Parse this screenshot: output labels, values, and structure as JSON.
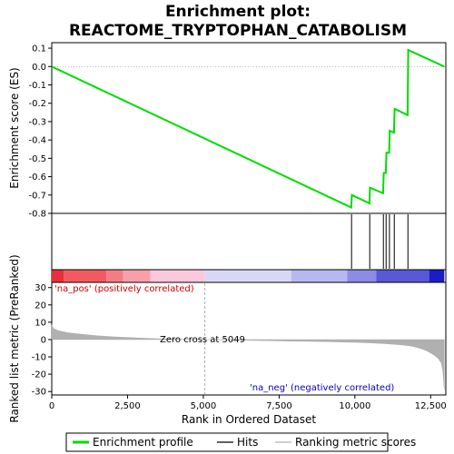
{
  "chart_data": {
    "type": "line",
    "title_line1": "Enrichment plot:",
    "title_line2": "REACTOME_TRYPTOPHAN_CATABOLISM",
    "colors": {
      "enrichment_line": "#00dd00",
      "hits": "#000000",
      "metric_fill": "#b0b0b0",
      "zero_cross": "#b0b0b0",
      "neg_label": "#0000cc",
      "pos_label": "#cc0000"
    },
    "enrichment_panel": {
      "ylabel": "Enrichment score (ES)",
      "ylim": [
        -0.8,
        0.13
      ],
      "yticks": [
        0.1,
        0.0,
        -0.1,
        -0.2,
        -0.3,
        -0.4,
        -0.5,
        -0.6,
        -0.7,
        -0.8
      ],
      "ytick_labels": [
        "0.1",
        "0.0",
        "-0.1",
        "-0.2",
        "-0.3",
        "-0.4",
        "-0.5",
        "-0.6",
        "-0.7",
        "-0.8"
      ],
      "profile": {
        "x": [
          0,
          9880,
          9900,
          10480,
          10500,
          10930,
          10950,
          11020,
          11040,
          11130,
          11150,
          11290,
          11310,
          11740,
          11760,
          12950
        ],
        "y": [
          0.0,
          -0.768,
          -0.7,
          -0.745,
          -0.66,
          -0.69,
          -0.58,
          -0.58,
          -0.47,
          -0.47,
          -0.35,
          -0.36,
          -0.23,
          -0.265,
          0.09,
          0.0
        ]
      }
    },
    "hits_panel": {
      "hit_ranks": [
        9890,
        10490,
        10940,
        11030,
        11140,
        11300,
        11750
      ]
    },
    "ranking_panel": {
      "ylabel": "Ranked list metric (PreRanked)",
      "ylim": [
        -32,
        33
      ],
      "yticks": [
        30,
        20,
        10,
        0,
        -10,
        -20,
        -30
      ],
      "ytick_labels": [
        "30",
        "20",
        "10",
        "0",
        "-10",
        "-20",
        "-30"
      ],
      "xlabel": "Rank in Ordered Dataset",
      "xlim": [
        0,
        13000
      ],
      "xticks": [
        0,
        2500,
        5000,
        7500,
        10000,
        12500
      ],
      "xtick_labels": [
        "0",
        "2,500",
        "5,000",
        "7,500",
        "10,000",
        "12,500"
      ],
      "zero_cross_rank": 5049,
      "zero_cross_text": "Zero cross at 5049",
      "pos_text": "'na_pos' (positively correlated)",
      "neg_text": "'na_neg' (negatively correlated)",
      "metric_curve": {
        "x": [
          0,
          50,
          200,
          500,
          1000,
          1500,
          2000,
          2500,
          3000,
          3500,
          4000,
          4500,
          5049,
          6000,
          7000,
          8000,
          9000,
          10000,
          10500,
          11000,
          11500,
          11800,
          12000,
          12200,
          12400,
          12600,
          12750,
          12850,
          12900,
          12950
        ],
        "y": [
          8.5,
          6.5,
          5.2,
          4.0,
          3.0,
          2.2,
          1.6,
          1.2,
          0.8,
          0.5,
          0.3,
          0.15,
          0.0,
          -0.3,
          -0.6,
          -0.9,
          -1.2,
          -1.6,
          -1.9,
          -2.4,
          -3.0,
          -3.6,
          -4.3,
          -5.3,
          -6.8,
          -8.8,
          -11.0,
          -13.5,
          -18.0,
          -29.0
        ]
      }
    },
    "color_bar": {
      "segments": [
        {
          "from": 0,
          "to": 400,
          "color": "#e8303a"
        },
        {
          "from": 400,
          "to": 1800,
          "color": "#f25a60"
        },
        {
          "from": 1800,
          "to": 2350,
          "color": "#f47d85"
        },
        {
          "from": 2350,
          "to": 3250,
          "color": "#f7a0aa"
        },
        {
          "from": 3250,
          "to": 5049,
          "color": "#fbc8dc"
        },
        {
          "from": 5049,
          "to": 7900,
          "color": "#d8d8f6"
        },
        {
          "from": 7900,
          "to": 9750,
          "color": "#b8b8f0"
        },
        {
          "from": 9750,
          "to": 10700,
          "color": "#8c8ce6"
        },
        {
          "from": 10700,
          "to": 12450,
          "color": "#5858d8"
        },
        {
          "from": 12450,
          "to": 12950,
          "color": "#1c1cc4"
        }
      ]
    },
    "legend": {
      "items": [
        {
          "label": "Enrichment profile",
          "color": "#00dd00",
          "kind": "line-thick"
        },
        {
          "label": "Hits",
          "color": "#000000",
          "kind": "line-thin"
        },
        {
          "label": "Ranking metric scores",
          "color": "#b0b0b0",
          "kind": "line-thin"
        }
      ]
    }
  }
}
